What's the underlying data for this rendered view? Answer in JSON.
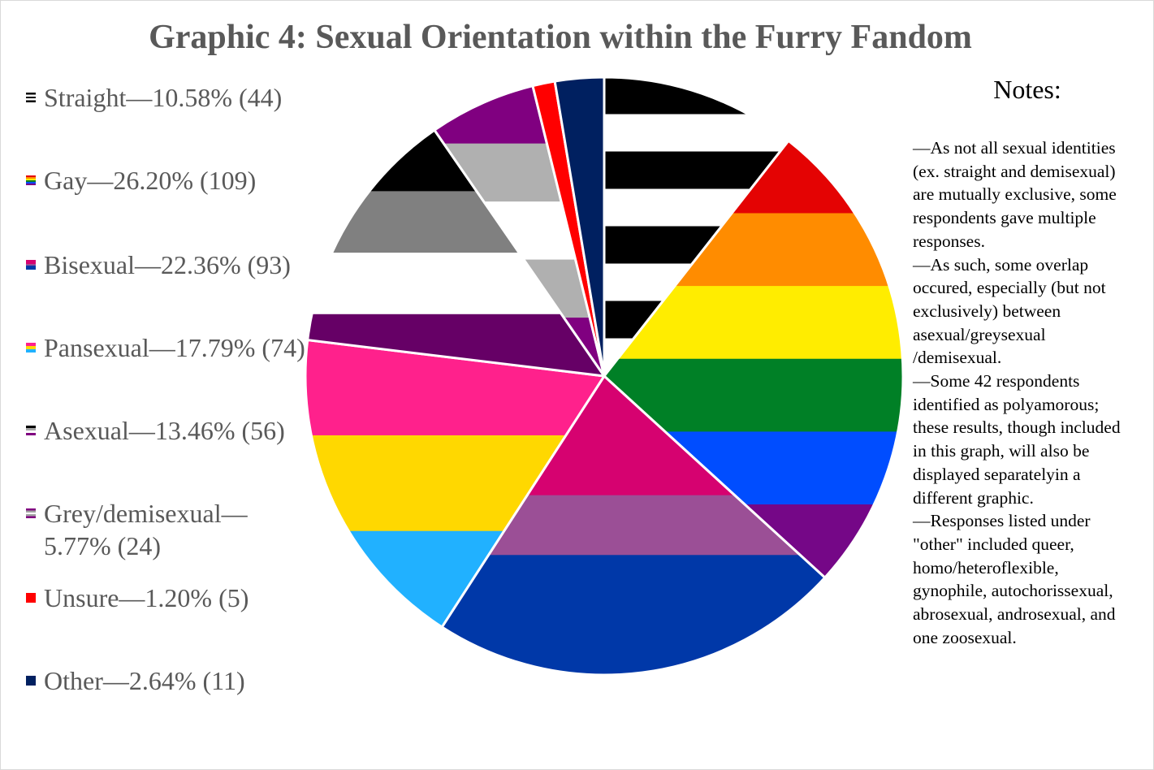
{
  "title": "Graphic 4: Sexual Orientation within the Furry Fandom",
  "legend": [
    {
      "label": "Straight—10.58% (44)",
      "swatch": [
        "#000000",
        "#ffffff",
        "#000000",
        "#ffffff",
        "#000000"
      ]
    },
    {
      "label": "Gay—26.20% (109)",
      "swatch": [
        "#e40303",
        "#ff8c00",
        "#ffed00",
        "#008026",
        "#004dff",
        "#750787"
      ]
    },
    {
      "label": "Bisexual—22.36% (93)",
      "swatch": [
        "#d60270",
        "#d60270",
        "#9b4f96",
        "#0038a8",
        "#0038a8"
      ]
    },
    {
      "label": "Pansexual—17.79% (74)",
      "swatch": [
        "#ff218c",
        "#ffd800",
        "#21b1ff"
      ]
    },
    {
      "label": "Asexual—13.46% (56)",
      "swatch": [
        "#000000",
        "#a3a3a3",
        "#ffffff",
        "#800080"
      ]
    },
    {
      "label": "Grey/demisexual—5.77% (24)",
      "swatch": [
        "#800080",
        "#a3a3a3",
        "#ffffff",
        "#a3a3a3",
        "#800080"
      ]
    },
    {
      "label": "Unsure—1.20% (5)",
      "swatch": [
        "#ff0000"
      ]
    },
    {
      "label": "Other—2.64% (11)",
      "swatch": [
        "#002060"
      ]
    }
  ],
  "notes": {
    "title": "Notes:",
    "lines": [
      "—As not all sexual identities (ex. straight and demisexual) are mutually exclusive, some respondents gave multiple responses.",
      "—As such, some overlap occured, especially (but not exclusively) between asexual/greysexual /demisexual.",
      "—Some 42 respondents identified as polyamorous; these results, though included in this graph, will also be displayed separatelyin a different graphic.",
      "—Responses listed under \"other\" included queer, homo/heteroflexible, gynophile, autochorissexual, abrosexual, androsexual, and one zoosexual."
    ]
  },
  "chart_data": {
    "type": "pie",
    "title": "Graphic 4: Sexual Orientation within the Furry Fandom",
    "categories": [
      "Straight",
      "Gay",
      "Bisexual",
      "Pansexual",
      "Asexual",
      "Grey/demisexual",
      "Unsure",
      "Other"
    ],
    "values": [
      44,
      109,
      93,
      74,
      56,
      24,
      5,
      11
    ],
    "percentages": [
      10.58,
      26.2,
      22.36,
      17.79,
      13.46,
      5.77,
      1.2,
      2.64
    ],
    "slice_fills": [
      [
        "#000000",
        "#ffffff",
        "#000000",
        "#ffffff",
        "#000000",
        "#ffffff",
        "#000000",
        "#ffffff"
      ],
      [
        "#e40303",
        "#ff8c00",
        "#ffed00",
        "#008026",
        "#004dff",
        "#750787"
      ],
      [
        "#d60270",
        "#d60270",
        "#9b4f96",
        "#0038a8",
        "#0038a8"
      ],
      [
        "#ff218c",
        "#ffd800",
        "#21b1ff"
      ],
      [
        "#000000",
        "#808080",
        "#ffffff",
        "#660066"
      ],
      [
        "#800080",
        "#b0b0b0",
        "#ffffff",
        "#b0b0b0",
        "#800080"
      ],
      [
        "#ff0000"
      ],
      [
        "#002060"
      ]
    ],
    "start_angle_deg": 0,
    "direction": "clockwise",
    "legend_position": "left"
  }
}
